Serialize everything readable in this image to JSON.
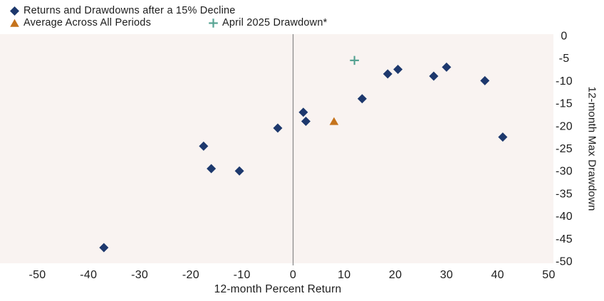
{
  "legend": {
    "items": [
      {
        "label": "Returns and Drawdowns after a 15% Decline",
        "marker": "diamond"
      },
      {
        "label": "Average Across All Periods",
        "marker": "triangle"
      },
      {
        "label": "April 2025 Drawdown*",
        "marker": "plus"
      }
    ]
  },
  "chart_data": {
    "type": "scatter",
    "xlabel": "12-month Percent Return",
    "ylabel": "12-month Max Drawdown",
    "xlim": [
      -50,
      50
    ],
    "ylim": [
      -50,
      0
    ],
    "x_ticks": [
      -50,
      -40,
      -30,
      -20,
      -10,
      0,
      10,
      20,
      30,
      40,
      50
    ],
    "y_ticks": [
      0,
      -5,
      -10,
      -15,
      -20,
      -25,
      -30,
      -35,
      -40,
      -45,
      -50
    ],
    "grid": false,
    "legend_position": "top-left",
    "plot_bg": "#f9f3f1",
    "axis_line_color": "#8c8c8c",
    "series": [
      {
        "name": "Returns and Drawdowns after a 15% Decline",
        "marker": "diamond",
        "color": "#1d386d",
        "points": [
          {
            "x": -37,
            "y": -47
          },
          {
            "x": -17.5,
            "y": -24.5
          },
          {
            "x": -16,
            "y": -29.5
          },
          {
            "x": -10.5,
            "y": -30
          },
          {
            "x": -3,
            "y": -20.5
          },
          {
            "x": 2,
            "y": -17
          },
          {
            "x": 2.5,
            "y": -19
          },
          {
            "x": 13.5,
            "y": -14
          },
          {
            "x": 18.5,
            "y": -8.5
          },
          {
            "x": 20.5,
            "y": -7.5
          },
          {
            "x": 27.5,
            "y": -9
          },
          {
            "x": 30,
            "y": -7
          },
          {
            "x": 37.5,
            "y": -10
          },
          {
            "x": 41,
            "y": -22.5
          }
        ]
      },
      {
        "name": "Average Across All Periods",
        "marker": "triangle",
        "color": "#c5731c",
        "points": [
          {
            "x": 8,
            "y": -19
          }
        ]
      },
      {
        "name": "April 2025 Drawdown*",
        "marker": "plus",
        "color": "#57a393",
        "points": [
          {
            "x": 12,
            "y": -5.5
          }
        ]
      }
    ]
  }
}
